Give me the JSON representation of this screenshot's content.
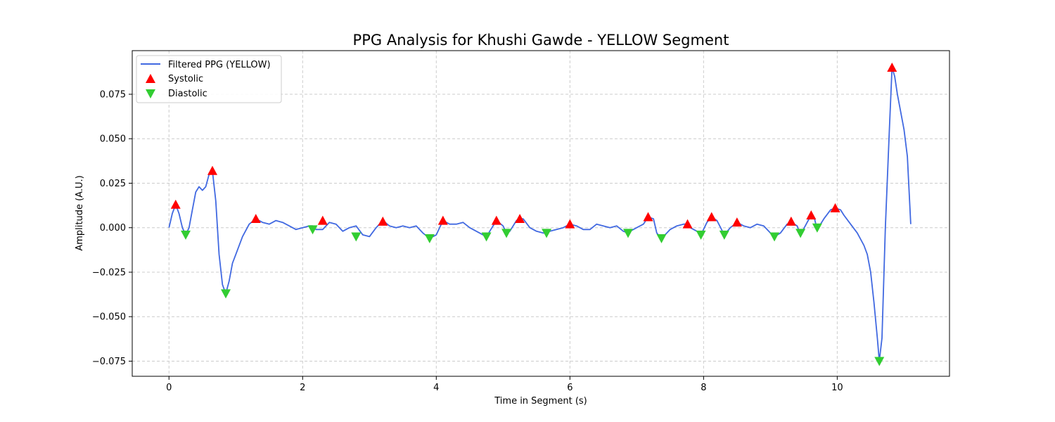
{
  "chart_data": {
    "type": "line",
    "title": "PPG Analysis for Khushi Gawde - YELLOW Segment",
    "xlabel": "Time in Segment (s)",
    "ylabel": "Amplitude (A.U.)",
    "xlim": [
      -0.55,
      11.68
    ],
    "ylim": [
      -0.0835,
      0.0995
    ],
    "x_ticks": [
      0,
      2,
      4,
      6,
      8,
      10
    ],
    "x_tick_labels": [
      "0",
      "2",
      "4",
      "6",
      "8",
      "10"
    ],
    "y_ticks": [
      -0.075,
      -0.05,
      -0.025,
      0.0,
      0.025,
      0.05,
      0.075
    ],
    "y_tick_labels": [
      "−0.075",
      "−0.050",
      "−0.025",
      "0.000",
      "0.025",
      "0.050",
      "0.075"
    ],
    "grid": true,
    "legend_position": "top-left",
    "colors": {
      "line": "#4169e1",
      "systolic": "#ff0000",
      "diastolic": "#32cd32",
      "grid": "#cccccc"
    },
    "series": [
      {
        "name": "Filtered PPG (YELLOW)",
        "kind": "line",
        "x": [
          0,
          0.05,
          0.1,
          0.15,
          0.2,
          0.25,
          0.3,
          0.35,
          0.4,
          0.45,
          0.5,
          0.55,
          0.6,
          0.65,
          0.7,
          0.75,
          0.8,
          0.85,
          0.9,
          0.95,
          1.0,
          1.1,
          1.2,
          1.3,
          1.4,
          1.5,
          1.55,
          1.6,
          1.7,
          1.8,
          1.9,
          2.0,
          2.1,
          2.15,
          2.2,
          2.3,
          2.4,
          2.5,
          2.6,
          2.7,
          2.8,
          2.9,
          3.0,
          3.1,
          3.2,
          3.3,
          3.4,
          3.5,
          3.6,
          3.7,
          3.8,
          3.9,
          4.0,
          4.1,
          4.2,
          4.3,
          4.4,
          4.5,
          4.6,
          4.7,
          4.75,
          4.8,
          4.9,
          5.0,
          5.05,
          5.1,
          5.2,
          5.25,
          5.3,
          5.4,
          5.5,
          5.6,
          5.65,
          5.7,
          5.8,
          5.9,
          6.0,
          6.1,
          6.2,
          6.3,
          6.4,
          6.5,
          6.6,
          6.7,
          6.8,
          6.87,
          6.9,
          7.0,
          7.1,
          7.17,
          7.25,
          7.3,
          7.37,
          7.45,
          7.5,
          7.6,
          7.7,
          7.76,
          7.8,
          7.9,
          7.96,
          8.05,
          8.12,
          8.2,
          8.31,
          8.4,
          8.5,
          8.6,
          8.7,
          8.8,
          8.9,
          9.0,
          9.06,
          9.15,
          9.25,
          9.31,
          9.4,
          9.45,
          9.55,
          9.61,
          9.66,
          9.7,
          9.8,
          9.9,
          9.97,
          10.05,
          10.1,
          10.2,
          10.3,
          10.4,
          10.45,
          10.5,
          10.55,
          10.6,
          10.63,
          10.67,
          10.72,
          10.78,
          10.82,
          10.86,
          10.9,
          11.0,
          11.05,
          11.1
        ],
        "y": [
          0.0,
          0.008,
          0.013,
          0.008,
          0.0,
          -0.004,
          0.0,
          0.01,
          0.02,
          0.023,
          0.021,
          0.023,
          0.03,
          0.032,
          0.015,
          -0.015,
          -0.032,
          -0.037,
          -0.03,
          -0.02,
          -0.015,
          -0.005,
          0.002,
          0.005,
          0.003,
          0.002,
          0.003,
          0.004,
          0.003,
          0.001,
          -0.001,
          0.0,
          0.001,
          0.001,
          -0.001,
          -0.001,
          0.003,
          0.002,
          -0.002,
          0.0,
          0.001,
          -0.004,
          -0.005,
          0.0,
          0.004,
          0.001,
          0.0,
          0.001,
          0.0,
          0.001,
          -0.003,
          -0.006,
          -0.004,
          0.004,
          0.002,
          0.002,
          0.003,
          0.0,
          -0.002,
          -0.004,
          -0.005,
          -0.002,
          0.004,
          0.001,
          -0.003,
          -0.002,
          0.004,
          0.005,
          0.005,
          0.0,
          -0.002,
          -0.003,
          -0.003,
          -0.002,
          -0.001,
          0.0,
          0.002,
          0.001,
          -0.001,
          -0.001,
          0.002,
          0.001,
          0.0,
          0.001,
          -0.002,
          -0.003,
          -0.002,
          0.0,
          0.002,
          0.006,
          0.005,
          -0.003,
          -0.006,
          -0.003,
          -0.001,
          0.001,
          0.002,
          0.002,
          0.0,
          -0.002,
          -0.004,
          0.003,
          0.006,
          0.004,
          -0.004,
          0.0,
          0.003,
          0.001,
          0.0,
          0.002,
          0.001,
          -0.003,
          -0.005,
          -0.003,
          0.002,
          0.003,
          0.001,
          -0.004,
          0.003,
          0.007,
          0.005,
          -0.001,
          0.005,
          0.01,
          0.011,
          0.01,
          0.007,
          0.002,
          -0.003,
          -0.01,
          -0.015,
          -0.025,
          -0.042,
          -0.062,
          -0.075,
          -0.062,
          0.0,
          0.055,
          0.09,
          0.085,
          0.075,
          0.055,
          0.04,
          0.002
        ]
      },
      {
        "name": "Systolic",
        "kind": "marker-up",
        "x": [
          0.1,
          0.65,
          1.3,
          2.3,
          3.2,
          4.1,
          4.9,
          5.25,
          6.0,
          7.17,
          7.76,
          8.12,
          8.5,
          9.31,
          9.61,
          9.97,
          10.82
        ],
        "y": [
          0.013,
          0.032,
          0.005,
          0.004,
          0.0035,
          0.004,
          0.004,
          0.005,
          0.002,
          0.006,
          0.002,
          0.006,
          0.003,
          0.0035,
          0.007,
          0.011,
          0.09
        ]
      },
      {
        "name": "Diastolic",
        "kind": "marker-down",
        "x": [
          0.25,
          0.85,
          2.15,
          2.8,
          3.9,
          4.75,
          5.05,
          5.65,
          6.87,
          7.37,
          7.96,
          8.31,
          9.06,
          9.45,
          9.7,
          10.63
        ],
        "y": [
          -0.004,
          -0.037,
          -0.001,
          -0.005,
          -0.006,
          -0.005,
          -0.003,
          -0.003,
          -0.003,
          -0.006,
          -0.004,
          -0.004,
          -0.005,
          -0.003,
          0.0,
          -0.075
        ]
      }
    ]
  }
}
